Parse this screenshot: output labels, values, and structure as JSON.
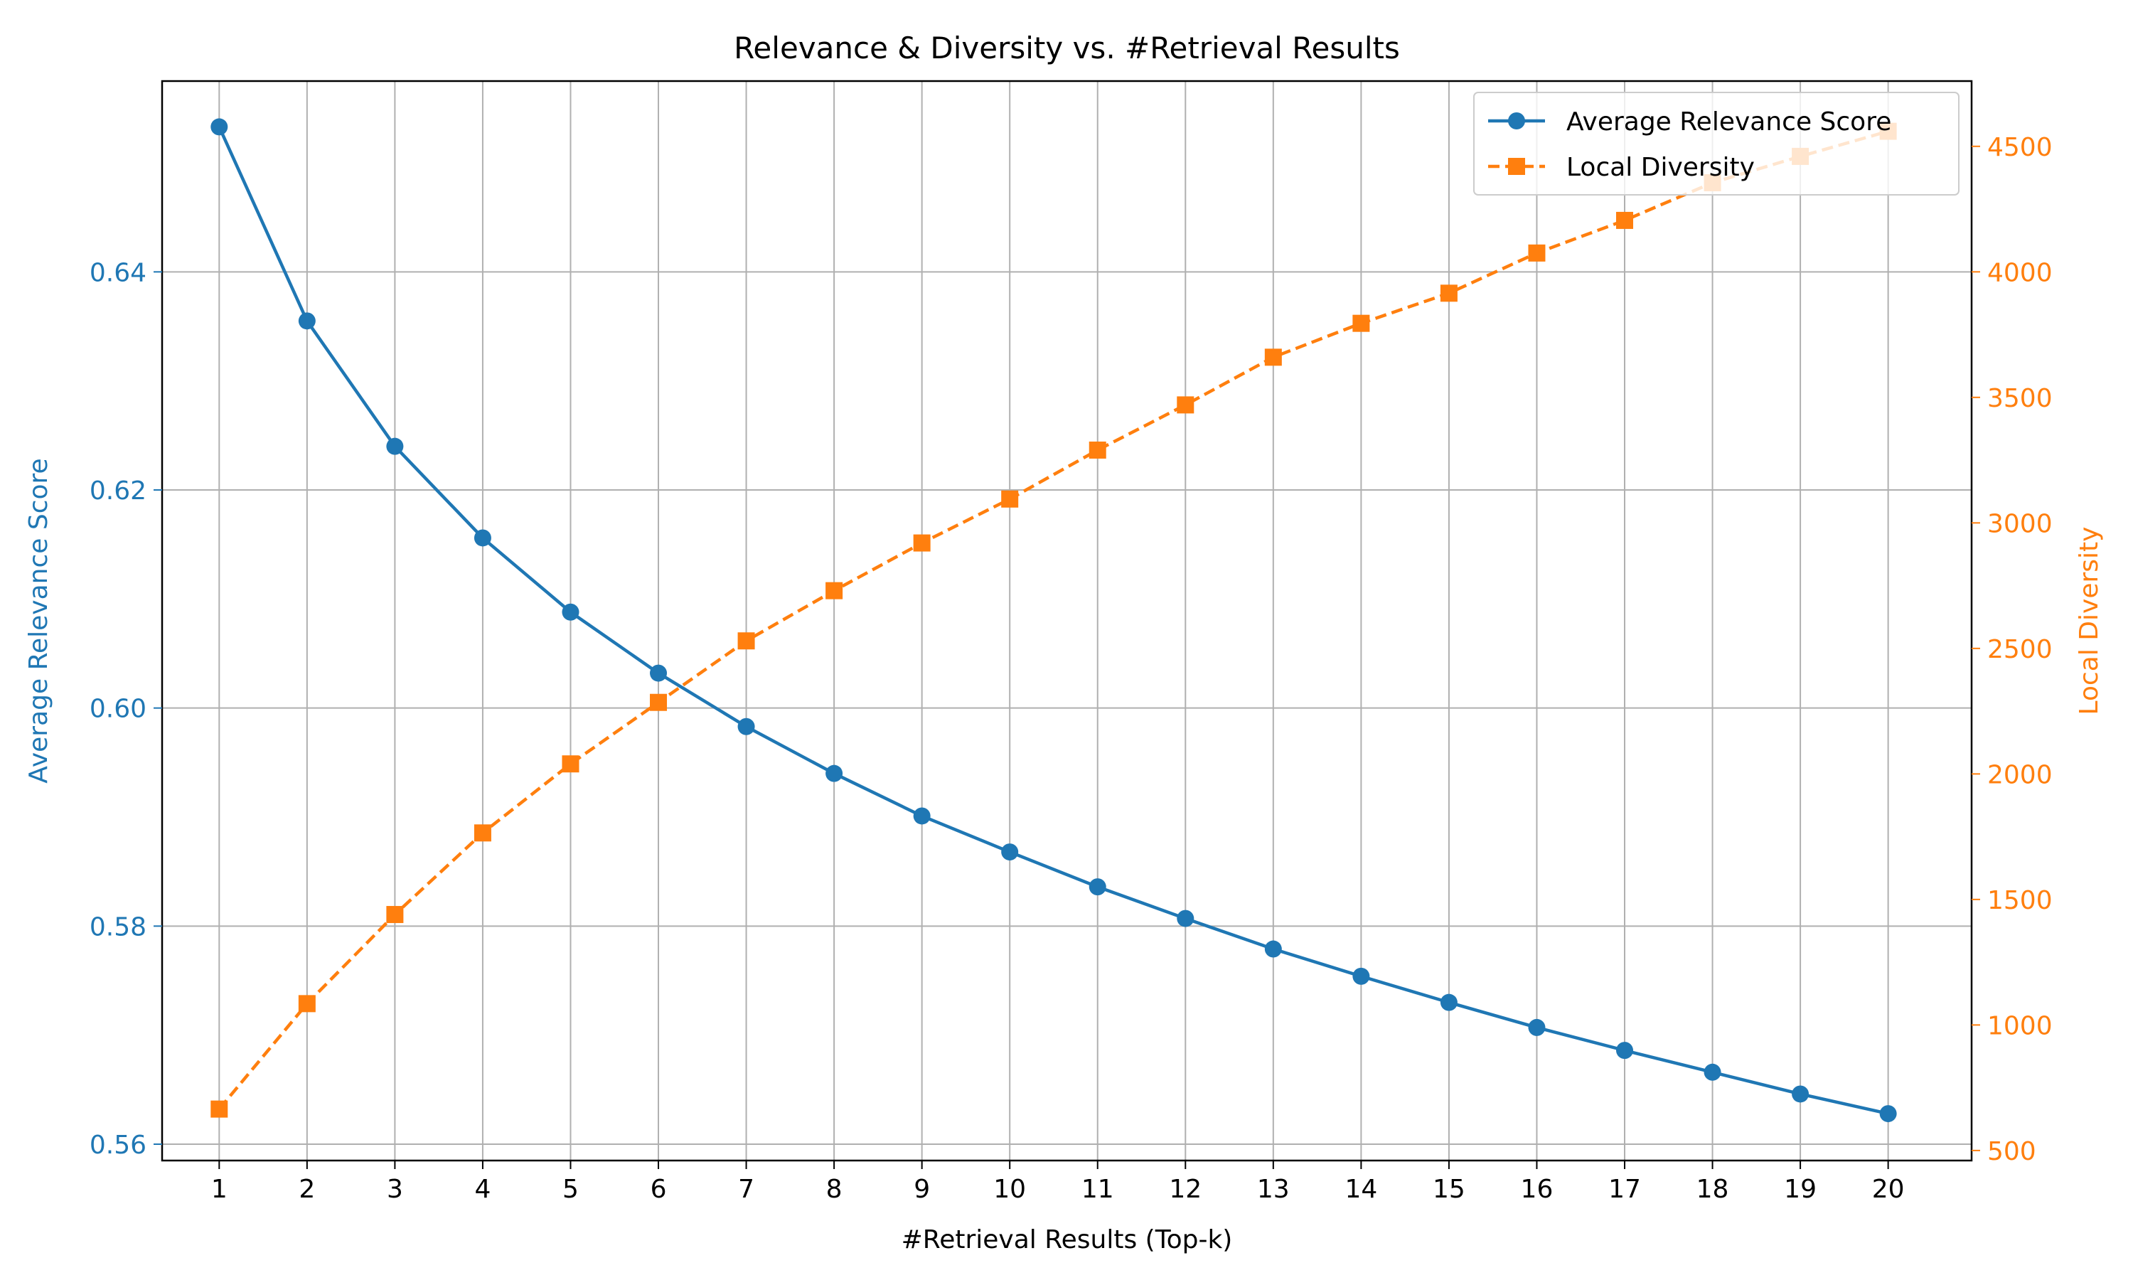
{
  "chart_data": {
    "type": "line",
    "title": "Relevance & Diversity vs. #Retrieval Results",
    "xlabel": "#Retrieval Results (Top-k)",
    "ylabel_left": "Average Relevance Score",
    "ylabel_right": "Local Diversity",
    "x": [
      1,
      2,
      3,
      4,
      5,
      6,
      7,
      8,
      9,
      10,
      11,
      12,
      13,
      14,
      15,
      16,
      17,
      18,
      19,
      20
    ],
    "x_ticks": [
      "1",
      "2",
      "3",
      "4",
      "5",
      "6",
      "7",
      "8",
      "9",
      "10",
      "11",
      "12",
      "13",
      "14",
      "15",
      "16",
      "17",
      "18",
      "19",
      "20"
    ],
    "xlim": [
      0.35,
      20.95
    ],
    "ylim_left": [
      0.5585,
      0.6575
    ],
    "yticks_left": [
      "0.56",
      "0.58",
      "0.60",
      "0.62",
      "0.64"
    ],
    "ylim_right": [
      460,
      4760
    ],
    "yticks_right": [
      "500",
      "1000",
      "1500",
      "2000",
      "2500",
      "3000",
      "3500",
      "4000",
      "4500"
    ],
    "grid": true,
    "legend_position": "top-right",
    "colors": {
      "left": "#1f77b4",
      "right": "#ff7f0e",
      "grid": "#b0b0b0",
      "axis": "#000000"
    },
    "series": [
      {
        "name": "Average Relevance Score",
        "axis": "left",
        "marker": "circle",
        "linestyle": "solid",
        "values": [
          0.6533,
          0.6355,
          0.624,
          0.6156,
          0.6088,
          0.6032,
          0.5983,
          0.594,
          0.5901,
          0.5868,
          0.5836,
          0.5807,
          0.5779,
          0.5754,
          0.573,
          0.5707,
          0.5686,
          0.5666,
          0.5646,
          0.5628
        ]
      },
      {
        "name": "Local Diversity",
        "axis": "right",
        "marker": "square",
        "linestyle": "dashed",
        "values": [
          665,
          1085,
          1440,
          1765,
          2040,
          2285,
          2530,
          2730,
          2920,
          3095,
          3290,
          3470,
          3660,
          3795,
          3915,
          4075,
          4205,
          4355,
          4460,
          4560
        ]
      }
    ]
  }
}
